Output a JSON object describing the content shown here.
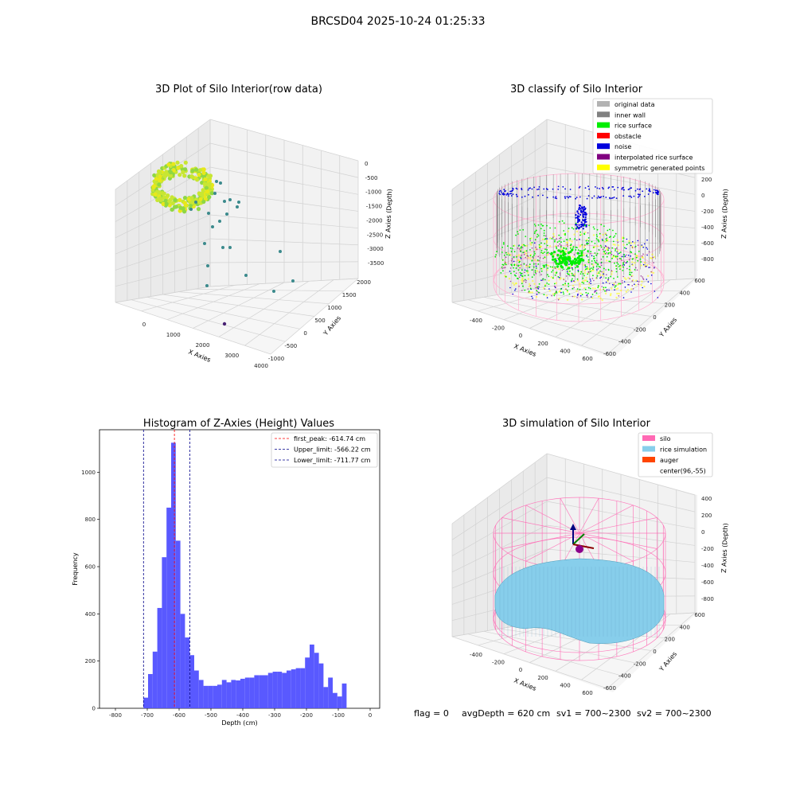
{
  "figure": {
    "suptitle": "BRCSD04 2025-10-24 01:25:33",
    "footer": {
      "flag": "flag = 0",
      "avg_depth": "avgDepth = 620 cm",
      "sv1": "sv1 = 700~2300",
      "sv2": "sv2 = 700~2300"
    }
  },
  "chart_data": [
    {
      "type": "scatter",
      "title": "3D Plot of Silo Interior(row data)",
      "xlabel": "X Axies",
      "ylabel": "Y Axies",
      "zlabel": "Z Axies (Depth)",
      "x_ticks": [
        "0",
        "1000",
        "2000",
        "3000",
        "4000"
      ],
      "y_ticks": [
        "-1000",
        "-500",
        "0",
        "500",
        "1000",
        "1500",
        "2000"
      ],
      "z_ticks": [
        "0",
        "-500",
        "-1000",
        "-1500",
        "-2000",
        "-2500",
        "-3000",
        "-3500"
      ],
      "colors": {
        "dense": "#c8e632",
        "outliers": "#3b8a8c",
        "dark": "#482173"
      }
    },
    {
      "type": "scatter",
      "title": "3D classify of Silo Interior",
      "xlabel": "X Axies",
      "ylabel": "Y Axies",
      "zlabel": "Z Axies (Depth)",
      "x_ticks": [
        "-400",
        "-200",
        "0",
        "200",
        "400",
        "600"
      ],
      "y_ticks": [
        "-600",
        "-400",
        "-200",
        "0",
        "200",
        "400",
        "600"
      ],
      "z_ticks": [
        "200",
        "0",
        "-200",
        "-400",
        "-600",
        "-800"
      ],
      "legend_position": "top-right",
      "legend": [
        {
          "label": "original data",
          "color": "#b3b3b3"
        },
        {
          "label": "inner wall",
          "color": "#808080"
        },
        {
          "label": "rice surface",
          "color": "#00ee00"
        },
        {
          "label": "obstacle",
          "color": "#ff0000"
        },
        {
          "label": "noise",
          "color": "#0000dd"
        },
        {
          "label": "interpolated rice surface",
          "color": "#800080"
        },
        {
          "label": "symmetric generated points",
          "color": "#ffff00"
        }
      ]
    },
    {
      "type": "bar",
      "title": "Histogram of Z-Axies (Height) Values",
      "xlabel": "Depth (cm)",
      "ylabel": "Frequency",
      "xlim": [
        -850,
        30
      ],
      "ylim": [
        0,
        1180
      ],
      "x_ticks": [
        -800,
        -700,
        -600,
        -500,
        -400,
        -300,
        -200,
        -100,
        0
      ],
      "y_ticks": [
        0,
        200,
        400,
        600,
        800,
        1000
      ],
      "bar_color": "#5050ff",
      "bin_start": -712,
      "bin_width": 14.5,
      "values": [
        45,
        145,
        240,
        425,
        640,
        850,
        1125,
        710,
        400,
        300,
        225,
        160,
        120,
        95,
        95,
        95,
        100,
        120,
        110,
        120,
        118,
        125,
        130,
        130,
        140,
        140,
        140,
        150,
        155,
        155,
        150,
        160,
        165,
        170,
        170,
        215,
        270,
        235,
        190,
        90,
        130,
        65,
        50,
        105
      ],
      "lines": [
        {
          "label": "first_peak: -614.74 cm",
          "x": -614.74,
          "color": "#ff0000"
        },
        {
          "label": "Upper_limit: -566.22 cm",
          "x": -566.22,
          "color": "#00008b"
        },
        {
          "label": "Lower_limit: -711.77 cm",
          "x": -711.77,
          "color": "#00008b"
        }
      ],
      "legend_position": "top-right"
    },
    {
      "type": "surface",
      "title": "3D simulation of Silo Interior",
      "xlabel": "X Axies",
      "ylabel": "Y Axies",
      "zlabel": "Z Axies (Depth)",
      "x_ticks": [
        "-400",
        "-200",
        "0",
        "200",
        "400",
        "600"
      ],
      "y_ticks": [
        "-600",
        "-400",
        "-200",
        "0",
        "200",
        "400",
        "600"
      ],
      "z_ticks": [
        "400",
        "200",
        "0",
        "-200",
        "-400",
        "-600",
        "-800"
      ],
      "legend_position": "top-right",
      "legend": [
        {
          "label": "silo",
          "color": "#ff69b4"
        },
        {
          "label": "rice simulation",
          "color": "#87ceeb"
        },
        {
          "label": "auger",
          "color": "#ff4500"
        },
        {
          "label": "center(96,-55)",
          "color": "#ffffff"
        }
      ]
    }
  ]
}
